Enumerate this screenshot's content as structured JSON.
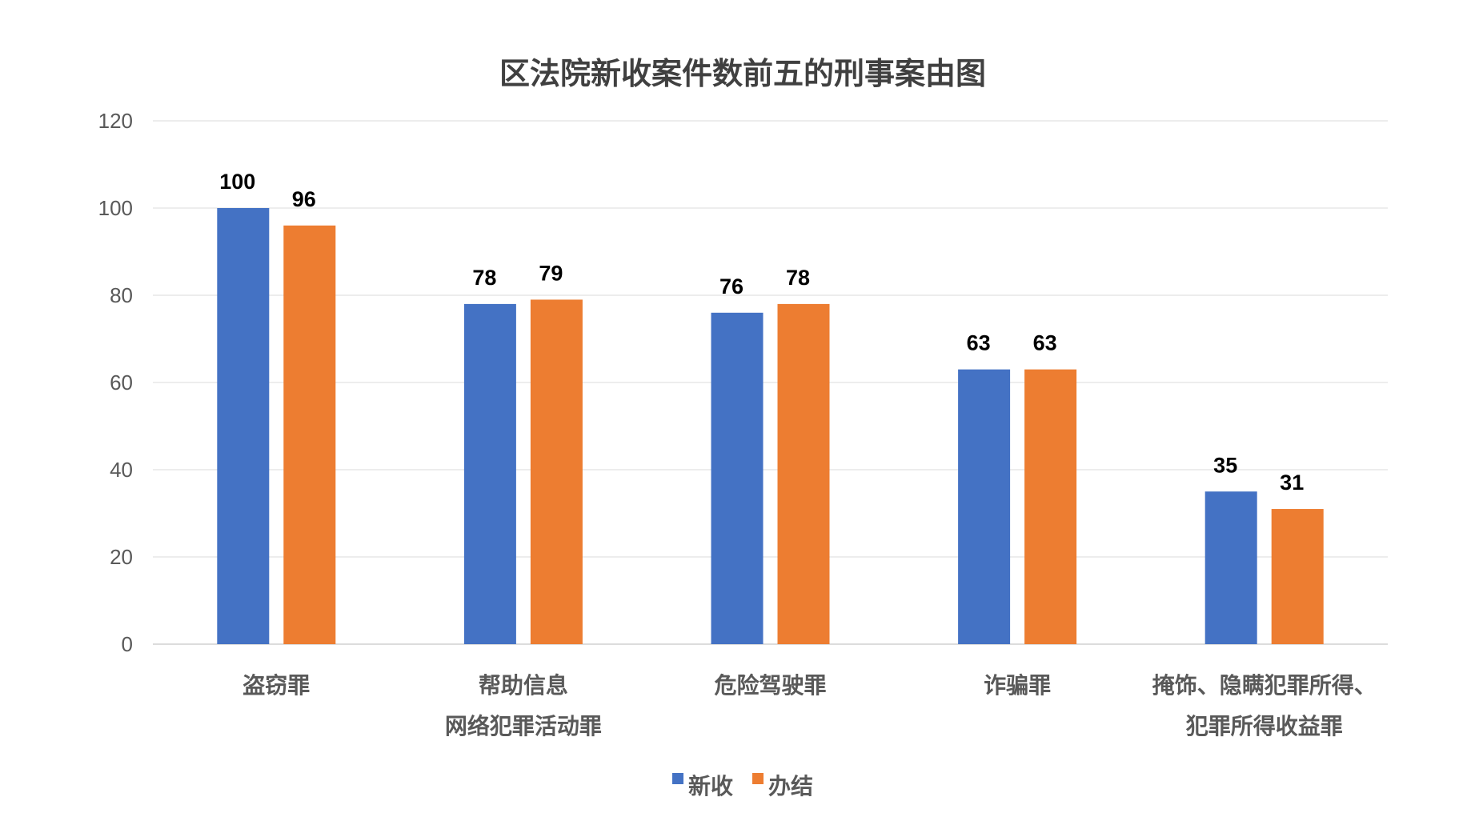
{
  "chart_data": {
    "type": "bar",
    "title": "区法院新收案件数前五的刑事案由图",
    "categories": [
      "盗窃罪",
      "帮助信息\n网络犯罪活动罪",
      "危险驾驶罪",
      "诈骗罪",
      "掩饰、隐瞒犯罪所得、\n犯罪所得收益罪"
    ],
    "series": [
      {
        "name": "新收",
        "values": [
          100,
          78,
          76,
          63,
          35
        ],
        "color": "#4472C4"
      },
      {
        "name": "办结",
        "values": [
          96,
          79,
          78,
          63,
          31
        ],
        "color": "#ED7D31"
      }
    ],
    "xlabel": "",
    "ylabel": "",
    "ylim": [
      0,
      120
    ],
    "yticks": [
      0,
      20,
      40,
      60,
      80,
      100,
      120
    ],
    "grid": true,
    "legend": "bottom",
    "data_labels": true
  }
}
